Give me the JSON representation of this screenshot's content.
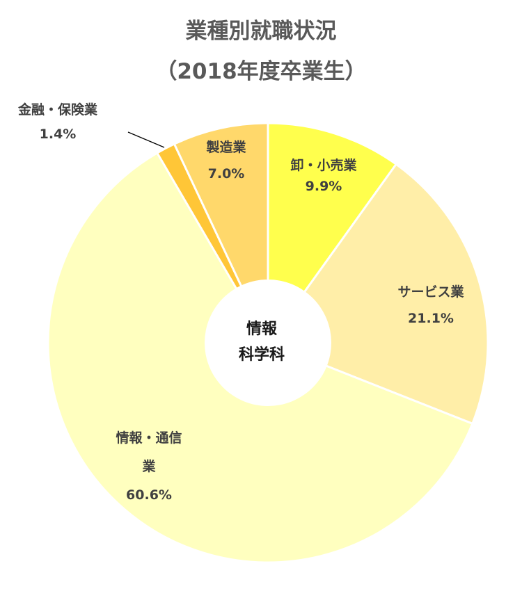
{
  "chart_data": {
    "type": "pie",
    "variant": "donut",
    "title": "業種別就職状況",
    "subtitle": "（2018年度卒業生）",
    "center_label": [
      "情報",
      "科学科"
    ],
    "start_angle_deg": 0,
    "direction": "clockwise",
    "slices": [
      {
        "label": "卸・小売業",
        "label_lines": [
          "卸・小売業"
        ],
        "value": 9.9,
        "value_text": "9.9%",
        "color": "#FFFF4D"
      },
      {
        "label": "サービス業",
        "label_lines": [
          "サービス業"
        ],
        "value": 21.1,
        "value_text": "21.1%",
        "color": "#FFEEA8"
      },
      {
        "label": "情報・通信業",
        "label_lines": [
          "情報・通信",
          "業"
        ],
        "value": 60.6,
        "value_text": "60.6%",
        "color": "#FFFFBF"
      },
      {
        "label": "金融・保険業",
        "label_lines": [
          "金融・保険業"
        ],
        "value": 1.4,
        "value_text": "1.4%",
        "color": "#FFC637"
      },
      {
        "label": "製造業",
        "label_lines": [
          "製造業"
        ],
        "value": 7.0,
        "value_text": "7.0%",
        "color": "#FFD86B"
      }
    ],
    "legend": "none",
    "colors": {
      "separator": "#ffffff",
      "title_text": "#595959",
      "label_text": "#404040",
      "center_text": "#1a1a1a"
    }
  }
}
